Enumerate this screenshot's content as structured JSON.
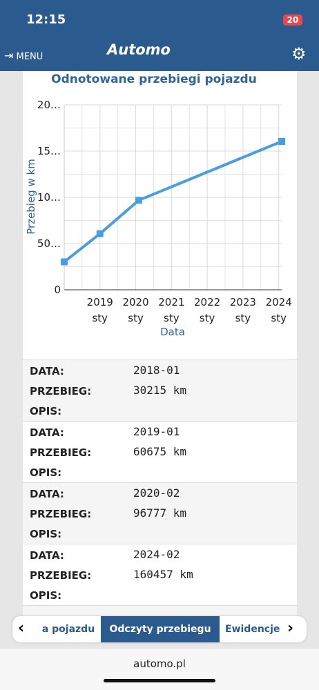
{
  "status_bar": {
    "time": "12:15",
    "battery": "20"
  },
  "header": {
    "menu": "MENU",
    "brand": "Automo"
  },
  "chart_data": {
    "type": "line",
    "title": "Odnotowane przebiegi pojazdu",
    "x_label": "Data",
    "y_label": "Przebieg w km",
    "x": [
      "2018-01",
      "2019-01",
      "2020-02",
      "2024-02"
    ],
    "series": [
      {
        "name": "Przebieg",
        "color": "#4a9de0",
        "values": [
          30215,
          60675,
          96777,
          160457
        ]
      }
    ],
    "xlim": [
      "2018-01",
      "2024-02"
    ],
    "xticks": [
      {
        "value": "2019-01",
        "label": "2019 sty"
      },
      {
        "value": "2020-01",
        "label": "2020 sty"
      },
      {
        "value": "2021-01",
        "label": "2021 sty"
      },
      {
        "value": "2022-01",
        "label": "2022 sty"
      },
      {
        "value": "2023-01",
        "label": "2023 sty"
      },
      {
        "value": "2024-01",
        "label": "2024 sty"
      }
    ],
    "ylim": [
      0,
      200000
    ],
    "yticks": [
      0,
      {
        "value": 50000,
        "label": "50…"
      },
      {
        "value": 100000,
        "label": "10…"
      },
      {
        "value": 150000,
        "label": "15…"
      },
      {
        "value": 200000,
        "label": "20…"
      }
    ],
    "grid": true
  },
  "records": {
    "labels": [
      "DATA:",
      "PRZEBIEG:",
      "OPIS:"
    ],
    "rows": [
      [
        "2018-01",
        "30215 km"
      ],
      [
        "2019-01",
        "60675 km"
      ],
      [
        "2020-02",
        "96777 km"
      ],
      [
        "2024-02",
        "160457 km"
      ]
    ]
  },
  "tabs": [
    "a pojazdu",
    "Odczyty przebiegu",
    "Ewidencje"
  ],
  "footer": {
    "url": "automo.pl"
  }
}
